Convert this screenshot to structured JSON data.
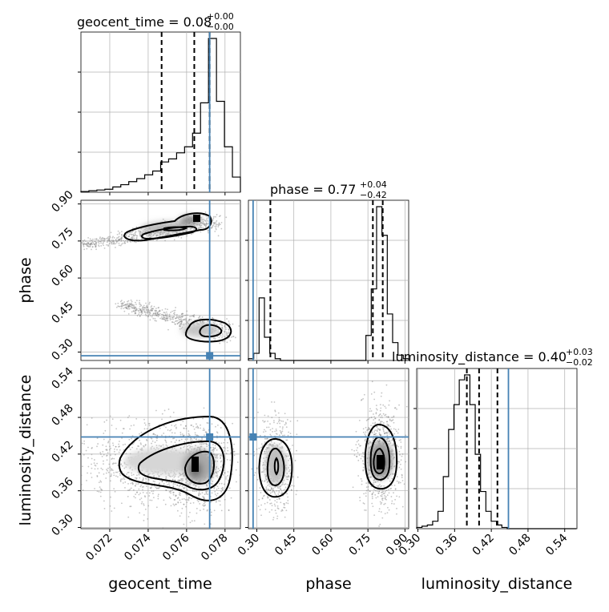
{
  "chart_data": {
    "type": "corner",
    "parameters": [
      "geocent_time",
      "phase",
      "luminosity_distance"
    ],
    "titles": [
      {
        "param": "geocent_time",
        "prefix": "geocent_time = ",
        "value": "0.08",
        "plus": "+0.00",
        "minus": "−0.00"
      },
      {
        "param": "phase",
        "prefix": "phase = ",
        "value": "0.77",
        "plus": "+0.04",
        "minus": "−0.42"
      },
      {
        "param": "luminosity_distance",
        "prefix": "luminosity_distance = ",
        "value": "0.40",
        "plus": "+0.03",
        "minus": "−0.02"
      }
    ],
    "axis_labels": {
      "x": [
        "geocent_time",
        "phase",
        "luminosity_distance"
      ],
      "y": [
        "phase",
        "luminosity_distance"
      ]
    },
    "ranges": {
      "geocent_time": [
        0.0705,
        0.0788
      ],
      "phase": [
        0.266,
        0.915
      ],
      "luminosity_distance": [
        0.298,
        0.56
      ]
    },
    "ticks": {
      "geocent_time": [
        "0.072",
        "0.074",
        "0.076",
        "0.078"
      ],
      "phase": [
        "0.30",
        "0.45",
        "0.60",
        "0.75",
        "0.90"
      ],
      "luminosity_distance": [
        "0.30",
        "0.36",
        "0.42",
        "0.48",
        "0.54"
      ]
    },
    "truths": {
      "geocent_time": 0.0772,
      "phase": 0.285,
      "luminosity_distance": 0.448
    },
    "quantiles": {
      "geocent_time": [
        0.0747,
        0.0764,
        0.0772
      ],
      "phase": [
        0.355,
        0.77,
        0.81
      ],
      "luminosity_distance": [
        0.38,
        0.4,
        0.43
      ]
    },
    "histograms": {
      "geocent_time": {
        "edges_start": 0.0705,
        "bin_width": 0.000415,
        "counts": [
          1,
          2,
          3,
          4,
          7,
          10,
          14,
          18,
          23,
          28,
          40,
          44,
          52,
          60,
          78,
          118,
          203,
          120,
          60,
          20
        ]
      },
      "phase": {
        "edges_start": 0.266,
        "bin_width": 0.02163,
        "counts": [
          2,
          8,
          70,
          26,
          8,
          2,
          0,
          0,
          0,
          0,
          0,
          0,
          0,
          0,
          0,
          0,
          0,
          0,
          0,
          0,
          0,
          0,
          28,
          80,
          172,
          140,
          52,
          20,
          6,
          2
        ]
      },
      "luminosity_distance": {
        "edges_start": 0.298,
        "bin_width": 0.0087,
        "counts": [
          1,
          2,
          3,
          6,
          14,
          42,
          80,
          100,
          120,
          124,
          100,
          60,
          30,
          14,
          6,
          3,
          1,
          0,
          0,
          0,
          0,
          0,
          0,
          0,
          0,
          0,
          0,
          0,
          0,
          0
        ]
      }
    },
    "grid": true,
    "colors": {
      "truth": "#4682b4",
      "quantile": "#000000",
      "histogram": "#000000",
      "samples": "#7f7f7f",
      "grid": "#b0b0b0"
    }
  }
}
